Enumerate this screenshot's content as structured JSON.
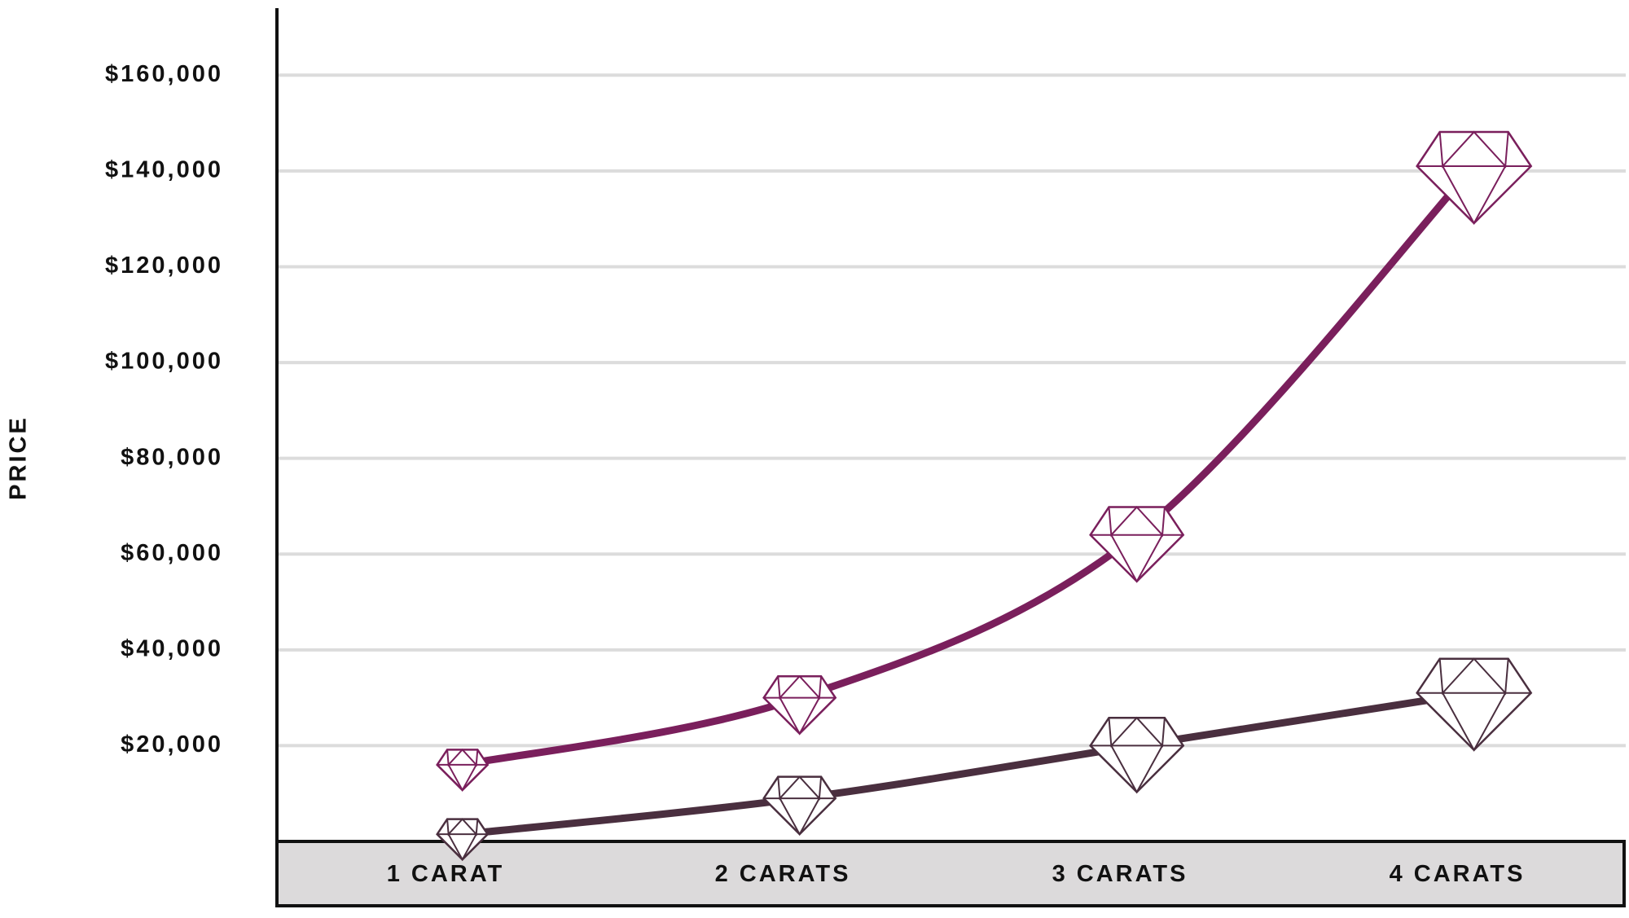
{
  "chart_data": {
    "type": "line",
    "y_label": "PRICE",
    "categories": [
      "1 CARAT",
      "2 CARATS",
      "3 CARATS",
      "4 CARATS"
    ],
    "series": [
      {
        "color": "#7a1f5c",
        "values": [
          16000,
          30000,
          64000,
          141000
        ]
      },
      {
        "color": "#4a2f3f",
        "values": [
          1500,
          9000,
          20000,
          31000
        ]
      }
    ],
    "ylim": [
      0,
      174000
    ],
    "yticks": [
      {
        "value": 20000,
        "label": "$20,000"
      },
      {
        "value": 40000,
        "label": "$40,000"
      },
      {
        "value": 60000,
        "label": "$60,000"
      },
      {
        "value": 80000,
        "label": "$80,000"
      },
      {
        "value": 100000,
        "label": "$100,000"
      },
      {
        "value": 120000,
        "label": "$120,000"
      },
      {
        "value": 140000,
        "label": "$140,000"
      },
      {
        "value": 160000,
        "label": "$160,000"
      }
    ],
    "grid": true
  }
}
